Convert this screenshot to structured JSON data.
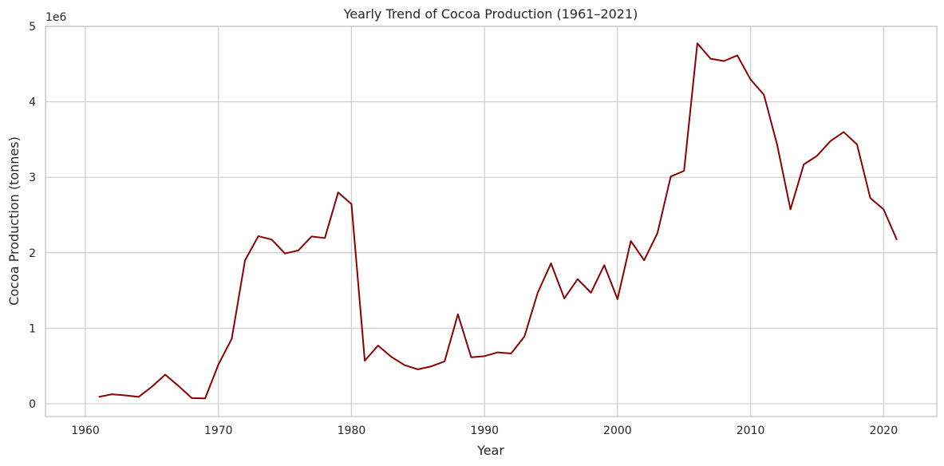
{
  "chart_data": {
    "type": "line",
    "title": "Yearly Trend of Cocoa Production (1961–2021)",
    "xlabel": "Year",
    "ylabel": "Cocoa Production (tonnes)",
    "y_offset_label": "1e6",
    "xlim": [
      1957,
      2024
    ],
    "ylim": [
      -170000,
      5000000
    ],
    "x_ticks": [
      1960,
      1970,
      1980,
      1990,
      2000,
      2010,
      2020
    ],
    "y_ticks": [
      0,
      1000000,
      2000000,
      3000000,
      4000000,
      5000000
    ],
    "y_tick_labels": [
      "0",
      "1",
      "2",
      "3",
      "4",
      "5"
    ],
    "grid": true,
    "line_color": "#8b0000",
    "series": [
      {
        "x": [
          1961,
          1962,
          1963,
          1964,
          1965,
          1966,
          1967,
          1968,
          1969,
          1970,
          1971,
          1972,
          1973,
          1974,
          1975,
          1976,
          1977,
          1978,
          1979,
          1980,
          1981,
          1982,
          1983,
          1984,
          1985,
          1986,
          1987,
          1988,
          1989,
          1990,
          1991,
          1992,
          1993,
          1994,
          1995,
          1996,
          1997,
          1998,
          1999,
          2000,
          2001,
          2002,
          2003,
          2004,
          2005,
          2006,
          2007,
          2008,
          2009,
          2010,
          2011,
          2012,
          2013,
          2014,
          2015,
          2016,
          2017,
          2018,
          2019,
          2020,
          2021
        ],
        "values": [
          90000,
          125000,
          110000,
          90000,
          225000,
          385000,
          235000,
          75000,
          70000,
          520000,
          860000,
          1900000,
          2220000,
          2175000,
          1990000,
          2030000,
          2215000,
          2195000,
          2800000,
          2645000,
          570000,
          770000,
          620000,
          510000,
          455000,
          495000,
          560000,
          1185000,
          615000,
          630000,
          680000,
          665000,
          890000,
          1470000,
          1860000,
          1395000,
          1650000,
          1470000,
          1835000,
          1385000,
          2155000,
          1900000,
          2260000,
          3010000,
          3085000,
          4775000,
          4570000,
          4540000,
          4615000,
          4295000,
          4095000,
          3430000,
          2575000,
          3170000,
          3285000,
          3480000,
          3600000,
          3435000,
          2725000,
          2575000,
          2170000
        ]
      }
    ]
  }
}
